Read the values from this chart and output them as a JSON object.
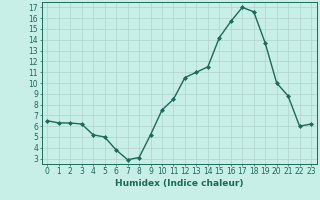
{
  "x": [
    0,
    1,
    2,
    3,
    4,
    5,
    6,
    7,
    8,
    9,
    10,
    11,
    12,
    13,
    14,
    15,
    16,
    17,
    18,
    19,
    20,
    21,
    22,
    23
  ],
  "y": [
    6.5,
    6.3,
    6.3,
    6.2,
    5.2,
    5.0,
    3.8,
    2.9,
    3.1,
    5.2,
    7.5,
    8.5,
    10.5,
    11.0,
    11.5,
    14.2,
    15.7,
    17.0,
    16.6,
    13.7,
    10.0,
    8.8,
    6.0,
    6.2
  ],
  "line_color": "#1a6b5a",
  "marker": "D",
  "marker_size": 2.0,
  "bg_color": "#c8eee8",
  "grid_color": "#b0d4cc",
  "xlabel": "Humidex (Indice chaleur)",
  "xlim": [
    -0.5,
    23.5
  ],
  "ylim": [
    2.5,
    17.5
  ],
  "yticks": [
    3,
    4,
    5,
    6,
    7,
    8,
    9,
    10,
    11,
    12,
    13,
    14,
    15,
    16,
    17
  ],
  "xticks": [
    0,
    1,
    2,
    3,
    4,
    5,
    6,
    7,
    8,
    9,
    10,
    11,
    12,
    13,
    14,
    15,
    16,
    17,
    18,
    19,
    20,
    21,
    22,
    23
  ],
  "xlabel_fontsize": 6.5,
  "tick_fontsize": 5.5,
  "line_width": 1.0
}
